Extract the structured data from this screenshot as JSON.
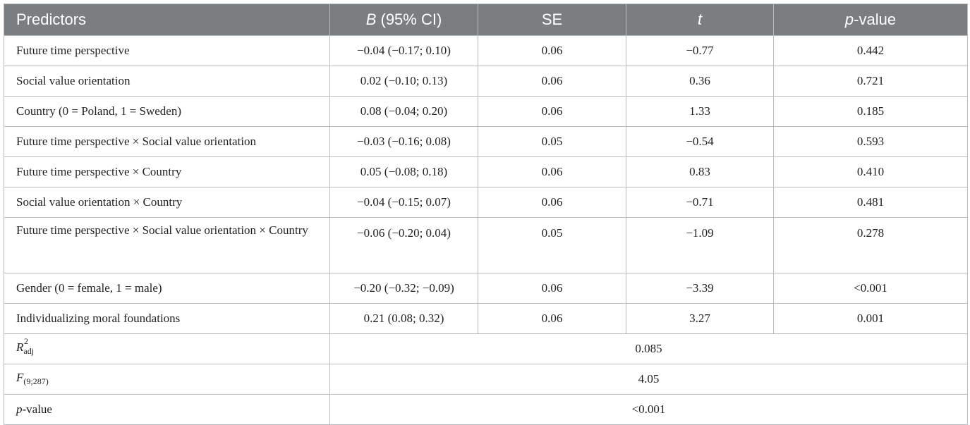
{
  "table": {
    "headers": {
      "predictors": "Predictors",
      "b_letter": "B",
      "b_suffix": " (95% CI)",
      "se": "SE",
      "t": "t",
      "p_letter": "p",
      "p_suffix": "-value"
    },
    "rows": [
      {
        "predictor": "Future time perspective",
        "b": "−0.04 (−0.17; 0.10)",
        "se": "0.06",
        "t": "−0.77",
        "p": "0.442"
      },
      {
        "predictor": "Social value orientation",
        "b": "0.02 (−0.10; 0.13)",
        "se": "0.06",
        "t": "0.36",
        "p": "0.721"
      },
      {
        "predictor": "Country (0 = Poland, 1 = Sweden)",
        "b": "0.08 (−0.04; 0.20)",
        "se": "0.06",
        "t": "1.33",
        "p": "0.185"
      },
      {
        "predictor": "Future time perspective × Social value orientation",
        "b": "−0.03 (−0.16; 0.08)",
        "se": "0.05",
        "t": "−0.54",
        "p": "0.593"
      },
      {
        "predictor": "Future time perspective × Country",
        "b": "0.05 (−0.08; 0.18)",
        "se": "0.06",
        "t": "0.83",
        "p": "0.410"
      },
      {
        "predictor": "Social value orientation × Country",
        "b": "−0.04 (−0.15; 0.07)",
        "se": "0.06",
        "t": "−0.71",
        "p": "0.481"
      },
      {
        "predictor": "Future time perspective × Social value orientation × Country",
        "b": "−0.06 (−0.20; 0.04)",
        "se": "0.05",
        "t": "−1.09",
        "p": "0.278"
      },
      {
        "predictor": "Gender (0 = female, 1 = male)",
        "b": "−0.20 (−0.32; −0.09)",
        "se": "0.06",
        "t": "−3.39",
        "p": "<0.001"
      },
      {
        "predictor": "Individualizing moral foundations",
        "b": "0.21 (0.08; 0.32)",
        "se": "0.06",
        "t": "3.27",
        "p": "0.001"
      }
    ],
    "summary": {
      "r2": {
        "letter": "R",
        "sup": "2",
        "sub": "adj",
        "value": "0.085"
      },
      "f": {
        "letter": "F",
        "sub": "(9;287)",
        "value": "4.05"
      },
      "p": {
        "letter": "p",
        "suffix": "-value",
        "value": "<0.001"
      }
    }
  }
}
